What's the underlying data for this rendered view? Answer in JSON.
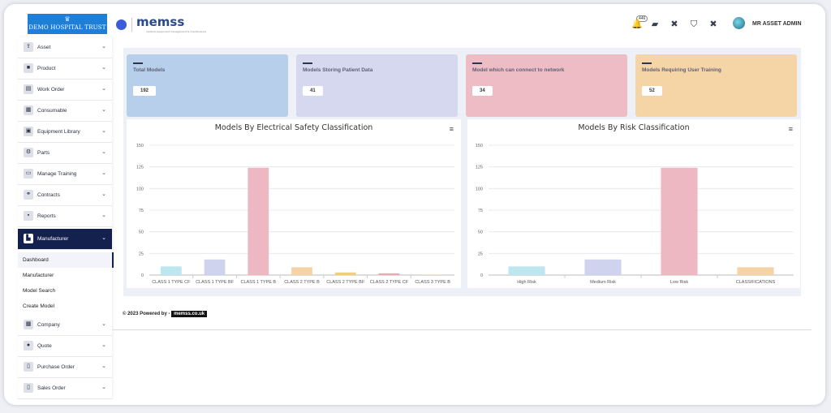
{
  "header": {
    "hospital_name": "DEMO HOSPITAL TRUST",
    "brand": "memss",
    "brand_sub": "medical equipment management & maintenance",
    "notification_count": "446",
    "user_name": "MR ASSET ADMIN"
  },
  "sidebar": {
    "items": [
      {
        "label": "Asset",
        "icon": "upload-box-icon"
      },
      {
        "label": "Product",
        "icon": "box-icon"
      },
      {
        "label": "Work Order",
        "icon": "clipboard-icon"
      },
      {
        "label": "Consumable",
        "icon": "grid-icon"
      },
      {
        "label": "Equipment Library",
        "icon": "monitor-icon"
      },
      {
        "label": "Parts",
        "icon": "parts-icon"
      },
      {
        "label": "Manage Training",
        "icon": "laptop-icon"
      },
      {
        "label": "Contracts",
        "icon": "handshake-icon"
      },
      {
        "label": "Reports",
        "icon": "report-icon"
      },
      {
        "label": "Manufacturer",
        "icon": "factory-icon"
      }
    ],
    "submenu": [
      "Dashboard",
      "Manufacturer",
      "Model Search",
      "Create Model"
    ],
    "items_after": [
      {
        "label": "Company",
        "icon": "company-icon"
      },
      {
        "label": "Quote",
        "icon": "quote-icon"
      },
      {
        "label": "Purchase Order",
        "icon": "purchase-order-icon"
      },
      {
        "label": "Sales Order",
        "icon": "sales-order-icon"
      }
    ]
  },
  "cards": [
    {
      "title": "Total Models",
      "value": "192",
      "color": "#b7cfea"
    },
    {
      "title": "Models Storing Patient Data",
      "value": "41",
      "color": "#d5d8ef"
    },
    {
      "title": "Model which can connect to network",
      "value": "34",
      "color": "#eebcc4"
    },
    {
      "title": "Models Requiring User Training",
      "value": "52",
      "color": "#f5d4a6"
    }
  ],
  "chart_data": [
    {
      "type": "bar",
      "title": "Models By Electrical Safety Classification",
      "categories": [
        "CLASS 1 TYPE CF",
        "CLASS 1 TYPE BF",
        "CLASS 1 TYPE B",
        "CLASS 2 TYPE B",
        "CLASS 2 TYPE BF",
        "CLASS 2 TYPE CF",
        "CLASS 3 TYPE B"
      ],
      "values": [
        10,
        18,
        124,
        9,
        3,
        2,
        1
      ],
      "colors": [
        "#bde6ee",
        "#cfd3ee",
        "#eeb8c2",
        "#f5d3a5",
        "#f2cc83",
        "#eea6b0",
        "#f2e3c8"
      ],
      "yticks": [
        0,
        25,
        50,
        75,
        100,
        125,
        150
      ],
      "ylim": [
        0,
        150
      ],
      "grid": true
    },
    {
      "type": "bar",
      "title": "Models By Risk Classification",
      "categories": [
        "High Risk",
        "Medium Risk",
        "Low Risk",
        "CLASSIFICATIONS"
      ],
      "values": [
        10,
        18,
        124,
        9
      ],
      "colors": [
        "#bde6ee",
        "#cfd3ee",
        "#eeb8c2",
        "#f5d3a5"
      ],
      "yticks": [
        0,
        25,
        50,
        75,
        100,
        125,
        150
      ],
      "ylim": [
        0,
        150
      ],
      "grid": true
    }
  ],
  "footer": {
    "text": "© 2023 Powered by -",
    "link": "memss.co.uk"
  }
}
